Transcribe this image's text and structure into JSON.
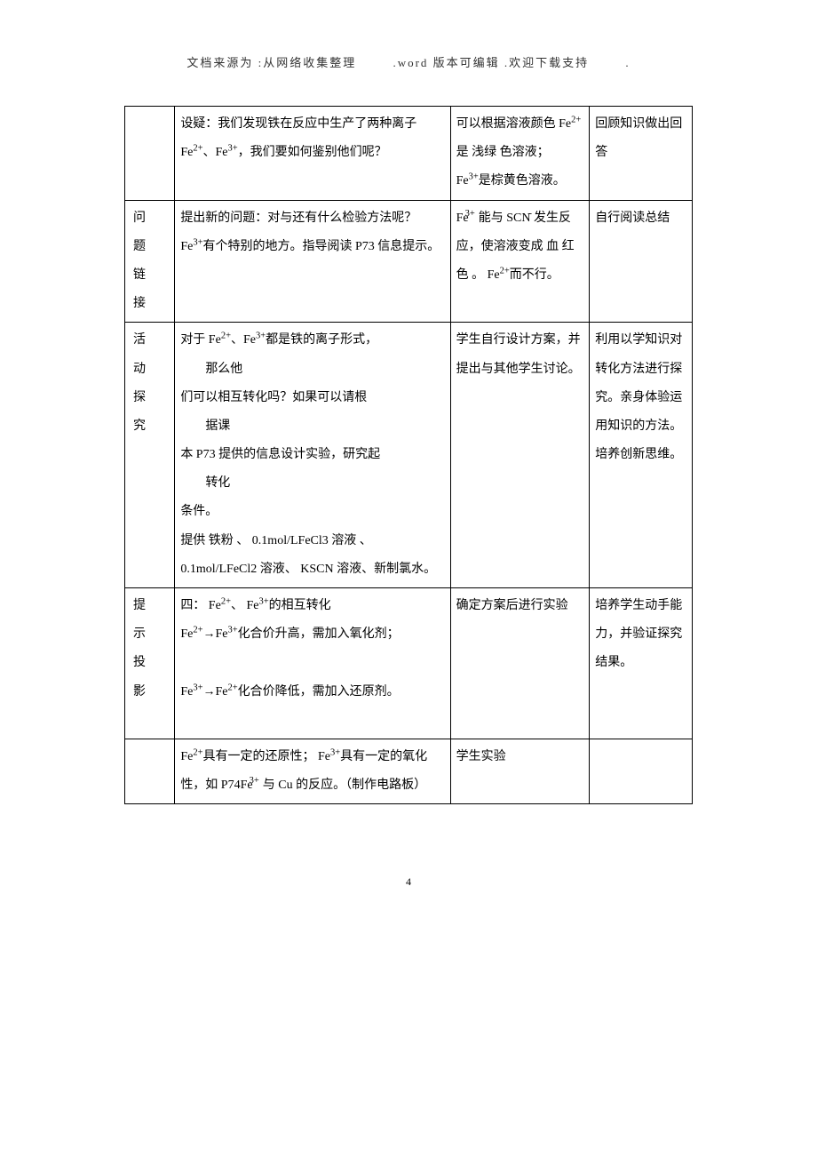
{
  "header": {
    "part1": "文档来源为 :从网络收集整理",
    "part2": ".word 版本可编辑 .欢迎下载支持",
    "part3": "."
  },
  "rows": [
    {
      "c1": "",
      "c2": "设疑：我们发现铁在反应中生产了两种离子 Fe²⁺、Fe³⁺，我们要如何鉴别他们呢？",
      "c3": "可以根据溶液颜色 Fe²⁺ 是 浅绿 色溶液；Fe³⁺是棕黄色溶液。",
      "c4": "回顾知识做出回答"
    },
    {
      "c1": "问题链接",
      "c2": "提出新的问题：对与还有什么检验方法呢？ Fe³⁺有个特别的地方。指导阅读 P73 信息提示。",
      "c3": "Fe³⁺能与 SCN⁻发生反应，使溶液变成 血 红色 。 Fe²⁺而不行。",
      "c4": "自行阅读总结"
    },
    {
      "c1": "活动探究",
      "c2_main": "对于 Fe²⁺、Fe³⁺都是铁的离子形式，",
      "c2_indent1": "那么他",
      "c2_line2": "们可以相互转化吗？如果可以请根",
      "c2_indent2": "据课",
      "c2_line3": "本 P73 提供的信息设计实验，研究起",
      "c2_indent3": "转化",
      "c2_line4": "条件。",
      "c2_line5": "提供 铁粉 、 0.1mol/LFeCl3 溶液 、0.1mol/LFeCl2 溶液、 KSCN 溶液、新制氯水。",
      "c3": "学生自行设计方案，并提出与其他学生讨论。",
      "c4": "利用以学知识对转化方法进行探究。亲身体验运用知识的方法。培养创新思维。"
    },
    {
      "c1": "提示投影",
      "c2": "四： Fe²⁺、 Fe³⁺的相互转化\nFe²⁺→Fe³⁺化合价升高，需加入氧化剂；\n\nFe³⁺→Fe²⁺化合价降低，需加入还原剂。\n ",
      "c3": "确定方案后进行实验",
      "c4": "培养学生动手能力，并验证探究结果。"
    },
    {
      "c1": "",
      "c2": "Fe²⁺具有一定的还原性； Fe³⁺具有一定的氧化性，如 P74Fe³⁺与 Cu 的反应。（制作电路板）",
      "c3": "学生实验",
      "c4": ""
    }
  ],
  "pagenum": "4"
}
